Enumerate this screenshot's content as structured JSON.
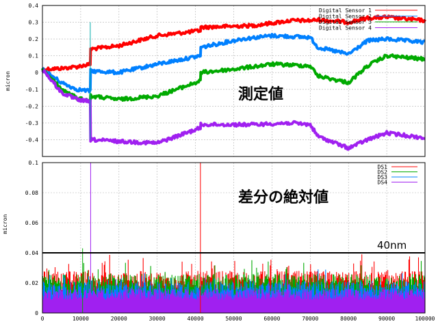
{
  "charts": [
    {
      "type": "line",
      "ylabel": "micron",
      "xlim": [
        0,
        100000
      ],
      "ylim": [
        -0.5,
        0.4
      ],
      "yticks": [
        "0.4",
        "0.3",
        "0.2",
        "0.1",
        "0",
        "-0.1",
        "-0.2",
        "-0.3",
        "-0.4"
      ],
      "ytick_values": [
        0.4,
        0.3,
        0.2,
        0.1,
        0,
        -0.1,
        -0.2,
        -0.3,
        -0.4
      ],
      "xtick_values": [
        0,
        10000,
        20000,
        30000,
        40000,
        50000,
        60000,
        70000,
        80000,
        90000,
        100000
      ],
      "grid": true,
      "legend": "top-right",
      "annotation": "測定値",
      "series": [
        {
          "name": "Digital Sensor 1",
          "color": "#ff0000",
          "x": [
            0,
            5000,
            9000,
            12500,
            12600,
            20000,
            30000,
            41300,
            41400,
            55000,
            65000,
            70000,
            72000,
            80000,
            85000,
            90000,
            100000
          ],
          "y": [
            0.02,
            0.025,
            0.035,
            0.05,
            0.14,
            0.16,
            0.22,
            0.25,
            0.27,
            0.28,
            0.31,
            0.31,
            0.315,
            0.3,
            0.325,
            0.33,
            0.31
          ]
        },
        {
          "name": "Digital Sensor 2",
          "color": "#0080ff",
          "x": [
            0,
            5000,
            9000,
            12500,
            12600,
            20000,
            30000,
            41300,
            41400,
            52000,
            60000,
            70000,
            72000,
            80000,
            85000,
            90000,
            100000
          ],
          "y": [
            0.02,
            -0.06,
            -0.1,
            -0.11,
            0.01,
            0.0,
            0.05,
            0.1,
            0.15,
            0.2,
            0.22,
            0.21,
            0.15,
            0.11,
            0.19,
            0.2,
            0.18
          ]
        },
        {
          "name": "Digital Sensor 3",
          "color": "#00aa00",
          "x": [
            0,
            5000,
            9000,
            12500,
            12600,
            20000,
            30000,
            41300,
            41400,
            50000,
            60000,
            70000,
            72000,
            80000,
            85000,
            90000,
            100000
          ],
          "y": [
            0.02,
            -0.1,
            -0.15,
            -0.17,
            -0.14,
            -0.16,
            -0.14,
            -0.05,
            0.0,
            0.02,
            0.05,
            0.04,
            -0.02,
            -0.06,
            0.04,
            0.1,
            0.08
          ]
        },
        {
          "name": "Digital Sensor 4",
          "color": "#a020f0",
          "x": [
            0,
            5000,
            9000,
            12500,
            12600,
            20000,
            30000,
            41300,
            41400,
            55000,
            65000,
            70000,
            72000,
            80000,
            85000,
            90000,
            100000
          ],
          "y": [
            0.02,
            -0.12,
            -0.16,
            -0.175,
            -0.4,
            -0.41,
            -0.42,
            -0.33,
            -0.31,
            -0.31,
            -0.3,
            -0.31,
            -0.38,
            -0.45,
            -0.4,
            -0.36,
            -0.39
          ]
        }
      ],
      "spikes": [
        {
          "x": 12500,
          "y": 0.3,
          "color": "#00aaaa"
        }
      ]
    },
    {
      "type": "bar",
      "ylabel": "micron",
      "xlim": [
        0,
        100000
      ],
      "ylim": [
        0,
        0.1
      ],
      "yticks": [
        "0.1",
        "0.08",
        "0.06",
        "0.04",
        "0.02",
        "0"
      ],
      "ytick_values": [
        0.1,
        0.08,
        0.06,
        0.04,
        0.02,
        0
      ],
      "xticks": [
        "0",
        "10000",
        "20000",
        "30000",
        "40000",
        "50000",
        "60000",
        "70000",
        "80000",
        "90000",
        "100000"
      ],
      "xtick_values": [
        0,
        10000,
        20000,
        30000,
        40000,
        50000,
        60000,
        70000,
        80000,
        90000,
        100000
      ],
      "grid": true,
      "legend": "top-right",
      "annotation": "差分の絶対値",
      "threshold": {
        "value": 0.04,
        "label": "40nm"
      },
      "series": [
        {
          "name": "DS1",
          "color": "#ff0000",
          "typical_max": 0.028
        },
        {
          "name": "DS2",
          "color": "#00aa00",
          "typical_max": 0.026
        },
        {
          "name": "DS3",
          "color": "#0080ff",
          "typical_max": 0.021
        },
        {
          "name": "DS4",
          "color": "#a020f0",
          "typical_max": 0.016
        }
      ],
      "spikes": [
        {
          "x": 12600,
          "y": 0.1,
          "color": "#a020f0"
        },
        {
          "x": 41300,
          "y": 0.1,
          "color": "#ff0000"
        },
        {
          "x": 10500,
          "y": 0.043,
          "color": "#00aa00"
        }
      ]
    }
  ]
}
